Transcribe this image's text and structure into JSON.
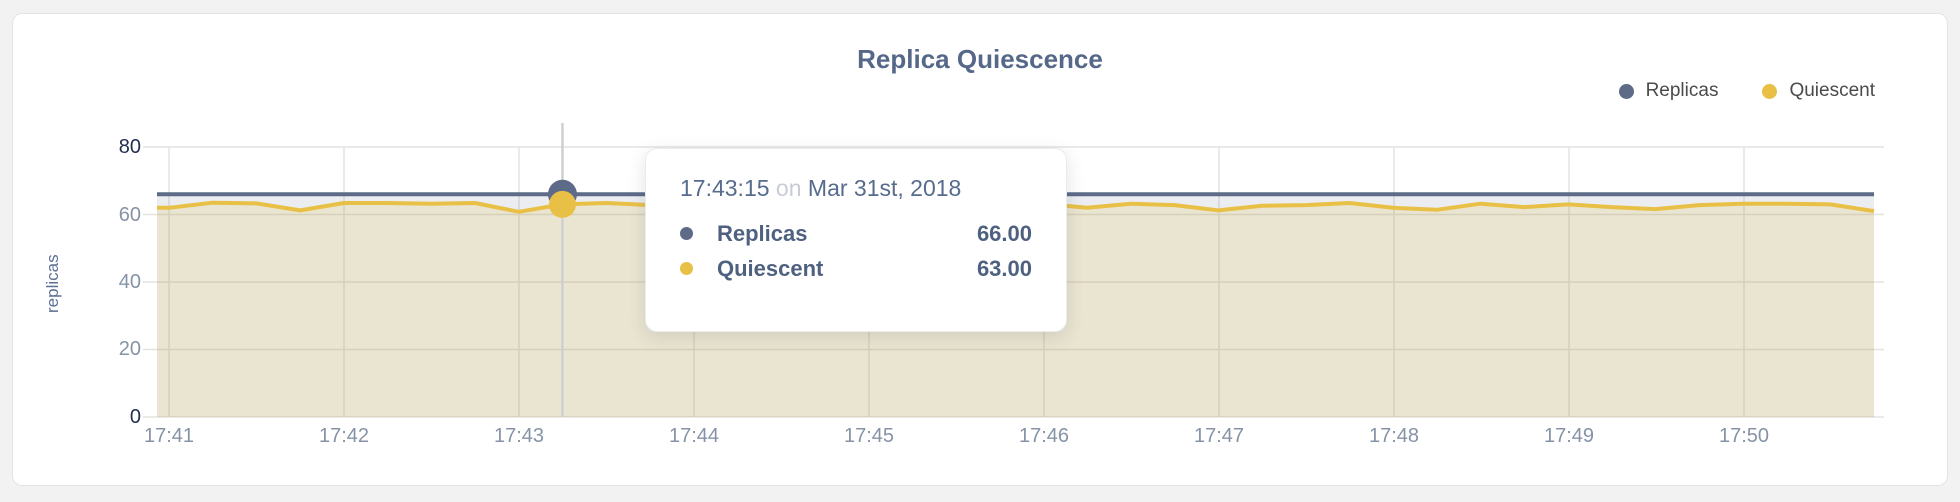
{
  "chart": {
    "title": "Replica Quiescence",
    "y_axis_title": "replicas",
    "y_ticks": [
      "80",
      "60",
      "40",
      "20",
      "0"
    ],
    "x_ticks": [
      "17:41",
      "17:42",
      "17:43",
      "17:44",
      "17:45",
      "17:46",
      "17:47",
      "17:48",
      "17:49",
      "17:50"
    ],
    "legend": [
      {
        "label": "Replicas",
        "color": "#5d6b89"
      },
      {
        "label": "Quiescent",
        "color": "#e9c046"
      }
    ]
  },
  "tooltip": {
    "time": "17:43:15",
    "connector": "on",
    "date": "Mar 31st, 2018",
    "rows": [
      {
        "label": "Replicas",
        "value": "66.00",
        "color": "#5d6b89"
      },
      {
        "label": "Quiescent",
        "value": "63.00",
        "color": "#e9c046"
      }
    ]
  },
  "chart_data": {
    "type": "line",
    "title": "Replica Quiescence",
    "xlabel": "",
    "ylabel": "replicas",
    "ylim": [
      0,
      80
    ],
    "y_tick_values": [
      0,
      20,
      40,
      60,
      80
    ],
    "grid": true,
    "legend_position": "top-right",
    "x": [
      "17:41:00",
      "17:41:15",
      "17:41:30",
      "17:41:45",
      "17:42:00",
      "17:42:15",
      "17:42:30",
      "17:42:45",
      "17:43:00",
      "17:43:15",
      "17:43:30",
      "17:43:45",
      "17:44:00",
      "17:44:15",
      "17:44:30",
      "17:44:45",
      "17:45:00",
      "17:45:15",
      "17:45:30",
      "17:45:45",
      "17:46:00",
      "17:46:15",
      "17:46:30",
      "17:46:45",
      "17:47:00",
      "17:47:15",
      "17:47:30",
      "17:47:45",
      "17:48:00",
      "17:48:15",
      "17:48:30",
      "17:48:45",
      "17:49:00",
      "17:49:15",
      "17:49:30",
      "17:49:45",
      "17:50:00",
      "17:50:15",
      "17:50:30",
      "17:50:45"
    ],
    "hover_index": 9,
    "hover_time": "17:43:15",
    "hover_date": "Mar 31st, 2018",
    "series": [
      {
        "name": "Replicas",
        "color": "#5d6b89",
        "fill": "rgba(102,115,141,0.13)",
        "values": [
          66,
          66,
          66,
          66,
          66,
          66,
          66,
          66,
          66,
          66,
          66,
          66,
          66,
          66,
          66,
          66,
          66,
          66,
          66,
          66,
          66,
          66,
          66,
          66,
          66,
          66,
          66,
          66,
          66,
          66,
          66,
          66,
          66,
          66,
          66,
          66,
          66,
          66,
          66,
          66
        ]
      },
      {
        "name": "Quiescent",
        "color": "#e9c046",
        "fill": "rgba(233,192,70,0.18)",
        "values": [
          62,
          63.5,
          63.3,
          61.2,
          63.4,
          63.4,
          63.2,
          63.4,
          60.8,
          63,
          63.4,
          62.8,
          63.3,
          63,
          62.6,
          63.3,
          63.4,
          62.2,
          62.8,
          63.4,
          63.2,
          62,
          63.2,
          62.8,
          61.2,
          62.6,
          62.8,
          63.4,
          62,
          61.4,
          63.2,
          62.2,
          63,
          62.2,
          61.6,
          62.8,
          63.2,
          63.2,
          63,
          61
        ]
      }
    ]
  }
}
